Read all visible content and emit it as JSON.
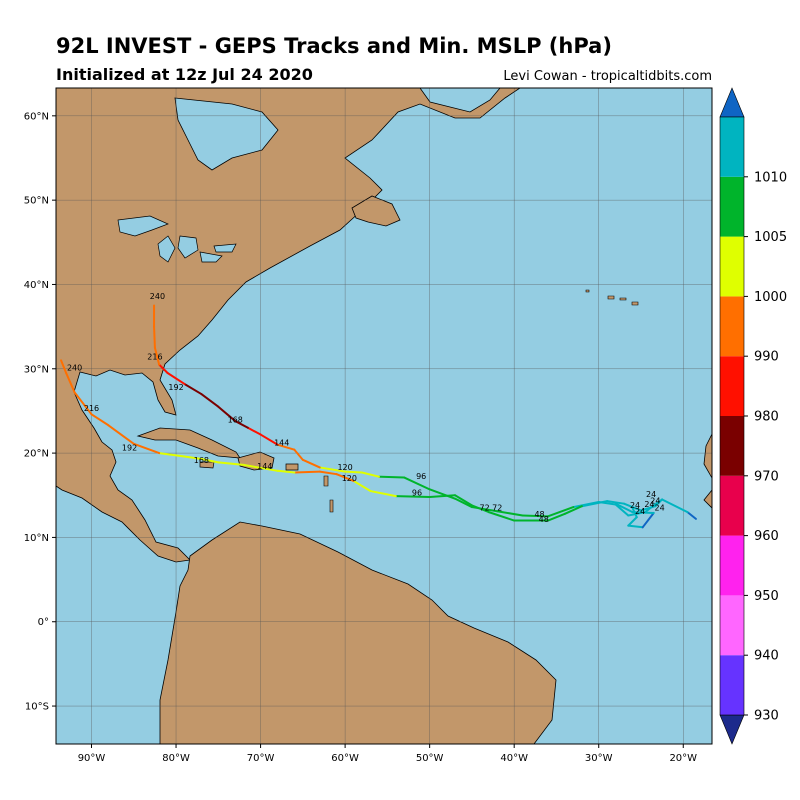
{
  "header": {
    "title": "92L INVEST - GEPS Tracks and Min. MSLP (hPa)",
    "subtitle": "Initialized at 12z Jul 24 2020",
    "credit": "Levi Cowan - tropicaltidbits.com"
  },
  "colors": {
    "ocean": "#94cde2",
    "land": "#c2976a",
    "border": "#000000",
    "grid": "#555555"
  },
  "axes": {
    "lon_ticks": [
      {
        "value": -90,
        "label": "90°W"
      },
      {
        "value": -80,
        "label": "80°W"
      },
      {
        "value": -70,
        "label": "70°W"
      },
      {
        "value": -60,
        "label": "60°W"
      },
      {
        "value": -50,
        "label": "50°W"
      },
      {
        "value": -40,
        "label": "40°W"
      },
      {
        "value": -30,
        "label": "30°W"
      },
      {
        "value": -20,
        "label": "20°W"
      }
    ],
    "lat_ticks": [
      {
        "value": 60,
        "label": "60°N"
      },
      {
        "value": 50,
        "label": "50°N"
      },
      {
        "value": 40,
        "label": "40°N"
      },
      {
        "value": 30,
        "label": "30°N"
      },
      {
        "value": 20,
        "label": "20°N"
      },
      {
        "value": 10,
        "label": "10°N"
      },
      {
        "value": 0,
        "label": "0°"
      },
      {
        "value": -10,
        "label": "10°S"
      }
    ],
    "lon_range": [
      -94.2,
      -16.6
    ],
    "lat_range": [
      -14.5,
      63.3
    ]
  },
  "colorbar": {
    "labels": [
      "930",
      "940",
      "950",
      "960",
      "970",
      "980",
      "990",
      "1000",
      "1005",
      "1010"
    ],
    "bins": [
      {
        "min": 920,
        "max": 930,
        "color": "#1c2a8c"
      },
      {
        "min": 930,
        "max": 940,
        "color": "#6633ff"
      },
      {
        "min": 940,
        "max": 950,
        "color": "#ff66ff"
      },
      {
        "min": 950,
        "max": 960,
        "color": "#ff22ee"
      },
      {
        "min": 960,
        "max": 970,
        "color": "#e8004c"
      },
      {
        "min": 970,
        "max": 980,
        "color": "#7a0000"
      },
      {
        "min": 980,
        "max": 990,
        "color": "#ff1000"
      },
      {
        "min": 990,
        "max": 1000,
        "color": "#ff6f00"
      },
      {
        "min": 1000,
        "max": 1005,
        "color": "#dfff00"
      },
      {
        "min": 1005,
        "max": 1010,
        "color": "#00b42b"
      },
      {
        "min": 1010,
        "max": 1015,
        "color": "#00b4c0"
      },
      {
        "min": 1015,
        "max": 1020,
        "color": "#0f65c4"
      }
    ]
  },
  "tracks": [
    {
      "points": [
        [
          -22.5,
          14.5,
          1014
        ],
        [
          -23.5,
          13.8,
          1012
        ],
        [
          -24.5,
          13.0,
          1011
        ],
        [
          -26.5,
          12.6,
          1011
        ],
        [
          -28,
          13.9,
          1010
        ],
        [
          -30,
          14.2,
          1010
        ],
        [
          -33,
          13.6,
          1010
        ],
        [
          -36,
          12.5,
          1009
        ],
        [
          -39,
          12.6,
          1008
        ],
        [
          -42,
          13.1,
          1007
        ],
        [
          -45,
          13.6,
          1007
        ],
        [
          -47,
          14.6,
          1006
        ],
        [
          -50,
          15.7,
          1006
        ],
        [
          -53,
          17.1,
          1006
        ],
        [
          -56,
          17.2,
          1005
        ],
        [
          -58,
          17.7,
          1004
        ],
        [
          -60,
          17.8,
          1003
        ],
        [
          -63,
          18.3,
          1000
        ],
        [
          -65,
          19.2,
          995
        ],
        [
          -66,
          20.4,
          991
        ],
        [
          -68,
          21.0,
          989
        ],
        [
          -70,
          22.2,
          986
        ],
        [
          -71.5,
          23.0,
          981
        ],
        [
          -73,
          23.8,
          978
        ],
        [
          -75,
          25.5,
          975
        ],
        [
          -77,
          27.0,
          972
        ],
        [
          -79,
          28.2,
          985
        ],
        [
          -81,
          29.5,
          988
        ],
        [
          -82,
          30.5,
          990
        ],
        [
          -82.5,
          32.5,
          996
        ],
        [
          -82.6,
          35.0,
          998
        ],
        [
          -82.6,
          37.5,
          998
        ]
      ],
      "labels": [
        {
          "text": "24",
          "lon": -23.3,
          "lat": 14.0
        },
        {
          "text": "48",
          "lon": -37.0,
          "lat": 12.4
        },
        {
          "text": "72",
          "lon": -42.0,
          "lat": 13.2
        },
        {
          "text": "96",
          "lon": -51.0,
          "lat": 16.9
        },
        {
          "text": "120",
          "lon": -60.0,
          "lat": 18.0
        },
        {
          "text": "144",
          "lon": -67.5,
          "lat": 20.9
        },
        {
          "text": "168",
          "lon": -73.0,
          "lat": 23.6
        },
        {
          "text": "192",
          "lon": -80.0,
          "lat": 27.5
        },
        {
          "text": "216",
          "lon": -82.5,
          "lat": 31.1
        },
        {
          "text": "240",
          "lon": -82.2,
          "lat": 38.3
        }
      ]
    },
    {
      "points": [
        [
          -18.5,
          12.2,
          1016
        ],
        [
          -19.5,
          13.0,
          1015
        ],
        [
          -22.5,
          14.5,
          1013
        ],
        [
          -23.3,
          13.7,
          1012
        ],
        [
          -25,
          13.2,
          1011
        ],
        [
          -27,
          14.0,
          1011
        ],
        [
          -29,
          14.3,
          1010
        ],
        [
          -32,
          13.7,
          1010
        ],
        [
          -34,
          12.8,
          1009
        ],
        [
          -36,
          12.0,
          1010
        ],
        [
          -40,
          12.0,
          1009
        ],
        [
          -43,
          13.0,
          1008
        ],
        [
          -45,
          13.8,
          1007
        ],
        [
          -47,
          15.0,
          1006
        ],
        [
          -50,
          14.8,
          1005
        ],
        [
          -54,
          14.9,
          1005
        ],
        [
          -57,
          15.5,
          1004
        ],
        [
          -59,
          16.7,
          1000
        ],
        [
          -61,
          17.5,
          999
        ],
        [
          -63,
          17.8,
          999
        ],
        [
          -66,
          17.7,
          1000
        ],
        [
          -68,
          17.9,
          1001
        ],
        [
          -72,
          18.6,
          1002
        ],
        [
          -75,
          18.9,
          1003
        ],
        [
          -77,
          19.3,
          1003
        ],
        [
          -79,
          19.6,
          1002
        ],
        [
          -82,
          20.0,
          1000
        ],
        [
          -85,
          21.1,
          999
        ],
        [
          -88,
          23.3,
          997
        ],
        [
          -90,
          24.6,
          996
        ],
        [
          -92,
          27.2,
          993
        ],
        [
          -93,
          29.5,
          992
        ],
        [
          -93.6,
          31.0,
          992
        ]
      ],
      "labels": [
        {
          "text": "24",
          "lon": -22.8,
          "lat": 13.2
        },
        {
          "text": "48",
          "lon": -36.5,
          "lat": 11.8
        },
        {
          "text": "72",
          "lon": -43.5,
          "lat": 13.2
        },
        {
          "text": "96",
          "lon": -51.5,
          "lat": 15.0
        },
        {
          "text": "120",
          "lon": -59.5,
          "lat": 16.7
        },
        {
          "text": "144",
          "lon": -69.5,
          "lat": 18.1
        },
        {
          "text": "168",
          "lon": -77.0,
          "lat": 18.8
        },
        {
          "text": "192",
          "lon": -85.5,
          "lat": 20.3
        },
        {
          "text": "216",
          "lon": -90.0,
          "lat": 25.0
        },
        {
          "text": "240",
          "lon": -92.0,
          "lat": 29.8
        }
      ]
    },
    {
      "points": [
        [
          -26,
          13.5,
          1015
        ],
        [
          -25.5,
          12.4,
          1014
        ],
        [
          -26.5,
          11.4,
          1013
        ],
        [
          -24.8,
          11.2,
          1016
        ],
        [
          -23.5,
          12.9,
          1014
        ],
        [
          -26,
          13.0,
          1013
        ],
        [
          -28,
          14.0,
          1012
        ]
      ],
      "labels": [
        {
          "text": "24",
          "lon": -25.7,
          "lat": 13.5
        },
        {
          "text": "24",
          "lon": -23.8,
          "lat": 14.8
        },
        {
          "text": "24",
          "lon": -24.0,
          "lat": 13.6
        },
        {
          "text": "24",
          "lon": -25.1,
          "lat": 12.8
        }
      ]
    }
  ]
}
